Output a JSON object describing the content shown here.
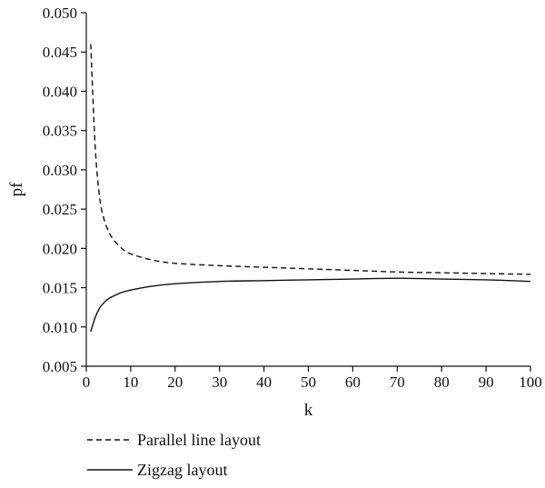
{
  "chart_data": {
    "type": "line",
    "xlabel": "k",
    "ylabel": "pf",
    "xlim": [
      0,
      100
    ],
    "ylim": [
      0.005,
      0.05
    ],
    "xticks": [
      0,
      10,
      20,
      30,
      40,
      50,
      60,
      70,
      80,
      90,
      100
    ],
    "yticks": [
      "0.005",
      "0.010",
      "0.015",
      "0.020",
      "0.025",
      "0.030",
      "0.035",
      "0.040",
      "0.045",
      "0.050"
    ],
    "grid": false,
    "legend_position": "bottom-left",
    "series": [
      {
        "name": "Parallel line layout",
        "line_style": "dashed",
        "color": "#111111",
        "x": [
          1,
          2,
          3,
          4,
          5,
          6,
          8,
          10,
          15,
          20,
          30,
          40,
          50,
          60,
          70,
          80,
          90,
          100
        ],
        "y": [
          0.046,
          0.033,
          0.0265,
          0.0237,
          0.0222,
          0.0212,
          0.02,
          0.0193,
          0.0185,
          0.0181,
          0.0178,
          0.0176,
          0.0174,
          0.0172,
          0.017,
          0.0169,
          0.0168,
          0.0167
        ]
      },
      {
        "name": "Zigzag layout",
        "line_style": "solid",
        "color": "#111111",
        "x": [
          1,
          2,
          3,
          4,
          5,
          6,
          8,
          10,
          15,
          20,
          30,
          40,
          50,
          60,
          70,
          80,
          90,
          100
        ],
        "y": [
          0.0094,
          0.0112,
          0.0124,
          0.0131,
          0.0136,
          0.0139,
          0.0144,
          0.0147,
          0.0152,
          0.0155,
          0.0158,
          0.0159,
          0.016,
          0.0161,
          0.0162,
          0.0161,
          0.016,
          0.0158
        ]
      }
    ]
  }
}
